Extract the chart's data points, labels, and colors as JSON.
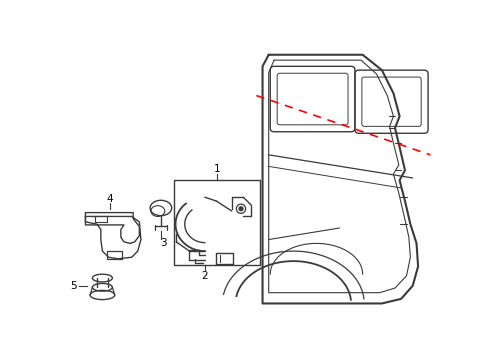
{
  "bg_color": "#ffffff",
  "line_color": "#3a3a3a",
  "red_dash_color": "#ff0000",
  "label_color": "#000000",
  "fig_width": 4.89,
  "fig_height": 3.6,
  "dpi": 100
}
